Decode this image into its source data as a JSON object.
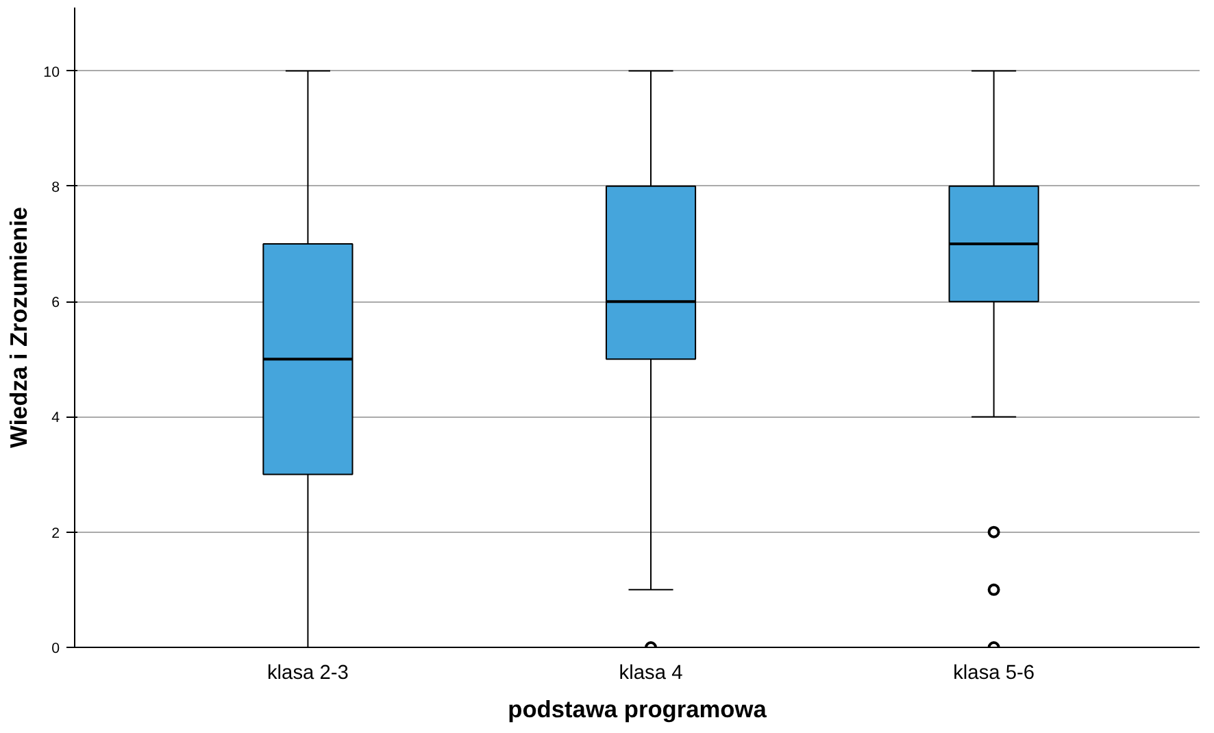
{
  "chart_data": {
    "type": "box",
    "xlabel": "podstawa programowa",
    "ylabel": "Wiedza i Zrozumienie",
    "categories": [
      "klasa 2-3",
      "klasa 4",
      "klasa 5-6"
    ],
    "series": [
      {
        "color": "#45a5dc",
        "boxes": [
          {
            "low": 0,
            "q1": 3,
            "median": 5,
            "q3": 7,
            "high": 10
          },
          {
            "low": 1,
            "q1": 5,
            "median": 6,
            "q3": 8,
            "high": 10,
            "outliers": [
              0
            ]
          },
          {
            "low": 4,
            "q1": 6,
            "median": 7,
            "q3": 8,
            "high": 10,
            "outliers": [
              2,
              1,
              0
            ]
          }
        ]
      }
    ],
    "ylim": [
      0,
      11.1
    ],
    "yticks": [
      0,
      2,
      4,
      6,
      8,
      10
    ],
    "grid": "y",
    "marker": "circle"
  }
}
